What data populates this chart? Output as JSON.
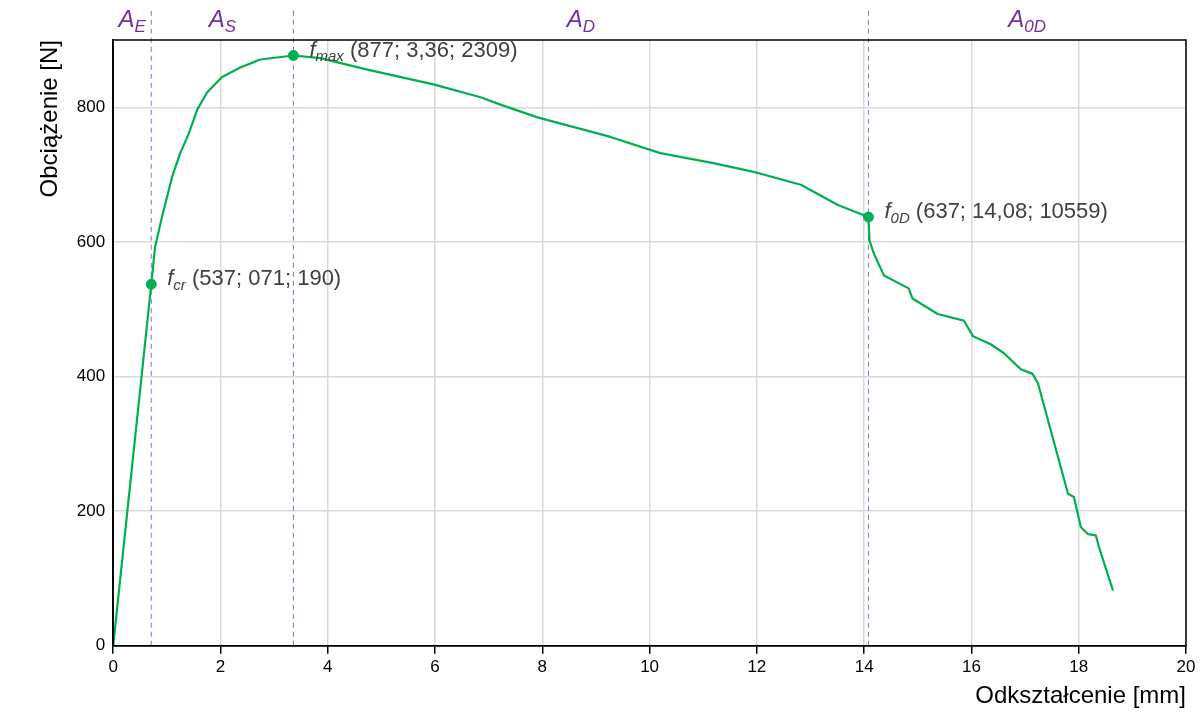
{
  "chart_data": {
    "type": "line",
    "xlabel": "Odkształcenie [mm]",
    "ylabel": "Obciążenie [N]",
    "xlim": [
      0,
      20
    ],
    "xticks": [
      0,
      2,
      4,
      6,
      8,
      10,
      12,
      14,
      16,
      18,
      20
    ],
    "ylim": [
      0,
      900
    ],
    "yticks": [
      0,
      200,
      400,
      600,
      800
    ],
    "grid": true,
    "legend": false,
    "marker": "none",
    "line_style": "solid",
    "series": [
      {
        "color": "#00b050",
        "x": [
          0,
          0.71,
          0.78,
          0.91,
          1.1,
          1.25,
          1.4,
          1.57,
          1.75,
          2.03,
          2.37,
          2.74,
          3.36,
          3.86,
          4.74,
          5.97,
          6.85,
          7.22,
          7.91,
          9.27,
          10.2,
          11.19,
          11.94,
          12.82,
          13.51,
          14.08,
          14.1,
          14.18,
          14.37,
          14.83,
          14.9,
          15.37,
          15.86,
          16.03,
          16.36,
          16.6,
          16.92,
          17.14,
          17.24,
          17.8,
          17.91,
          18.04,
          18.17,
          18.32,
          18.38,
          18.64
        ],
        "values": [
          0,
          537,
          592,
          637,
          697,
          732,
          759,
          797,
          822,
          845,
          859,
          871,
          877,
          873,
          856,
          834,
          815,
          804,
          785,
          756,
          732,
          717,
          704,
          685,
          655,
          637,
          602,
          583,
          550,
          531,
          516,
          493,
          483,
          460,
          448,
          435,
          411,
          404,
          390,
          226,
          221,
          176,
          166,
          164,
          146,
          82
        ]
      },
      {
        "type": "scatter",
        "marker": "circle",
        "color": "#00b050",
        "x": [
          0.71,
          3.36,
          14.08
        ],
        "values": [
          537,
          877,
          637
        ]
      }
    ],
    "ref_lines": [
      {
        "axis": "x",
        "value": 0.71,
        "label": null,
        "color": "#9966cc",
        "line_style": "dashed"
      },
      {
        "axis": "x",
        "value": 3.36,
        "label": null,
        "color": "#9966cc",
        "line_style": "dashed"
      },
      {
        "axis": "x",
        "value": 14.08,
        "label": null,
        "color": "#9966cc",
        "line_style": "dashed"
      }
    ],
    "annotations": [
      "A$_{E}$",
      "A$_{S}$",
      "A$_{D}$",
      "A$_{0D}$",
      {
        "text": "f$_{cr}$ (537; 071; 190)",
        "x": 0.71,
        "y": 537
      },
      {
        "text": "f$_{max}$ (877; 3,36; 2309)",
        "x": 3.36,
        "y": 877
      },
      {
        "text": "f$_{0D}$ (637; 14,08; 10559)",
        "x": 14.08,
        "y": 637
      }
    ]
  }
}
